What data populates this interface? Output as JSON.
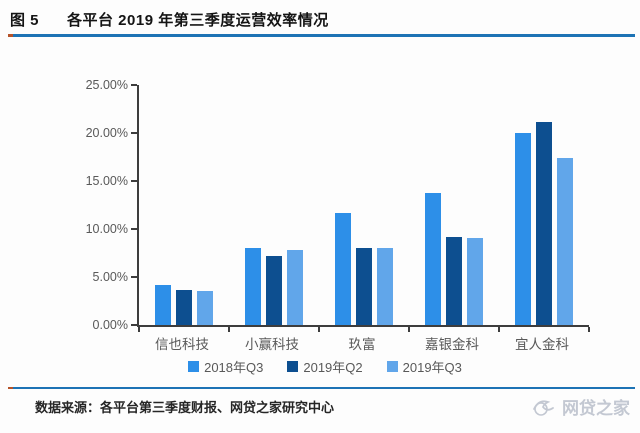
{
  "header": {
    "figure_label": "图 5",
    "title": "各平台 2019 年第三季度运营效率情况"
  },
  "chart_data": {
    "type": "bar",
    "title": "各平台2019年第三季度运营效率情况",
    "categories": [
      "信也科技",
      "小赢科技",
      "玖富",
      "嘉银金科",
      "宜人金科"
    ],
    "series": [
      {
        "name": "2018年Q3",
        "color": "#2d8fe8",
        "values": [
          4.2,
          8.0,
          11.7,
          13.8,
          20.0
        ]
      },
      {
        "name": "2019年Q2",
        "color": "#0d4f90",
        "values": [
          3.6,
          7.2,
          8.0,
          9.2,
          21.1
        ]
      },
      {
        "name": "2019年Q3",
        "color": "#61a6ea",
        "values": [
          3.5,
          7.8,
          8.0,
          9.1,
          17.4
        ]
      }
    ],
    "xlabel": "",
    "ylabel": "",
    "ylim": [
      0,
      25
    ],
    "ytick_step": 5,
    "ytick_labels": [
      "0.00%",
      "5.00%",
      "10.00%",
      "15.00%",
      "20.00%",
      "25.00%"
    ],
    "value_format": "percent",
    "grid": false,
    "legend_position": "bottom"
  },
  "footer": {
    "source_text": "数据来源：各平台第三季度财报、网贷之家研究中心",
    "watermark_text": "网贷之家"
  },
  "colors": {
    "rule_blue": "#1d73b5",
    "rule_cap_orange": "#b5532a",
    "axis": "#3d3d3d",
    "tick_label": "#595959",
    "watermark": "#c3c8d2"
  }
}
